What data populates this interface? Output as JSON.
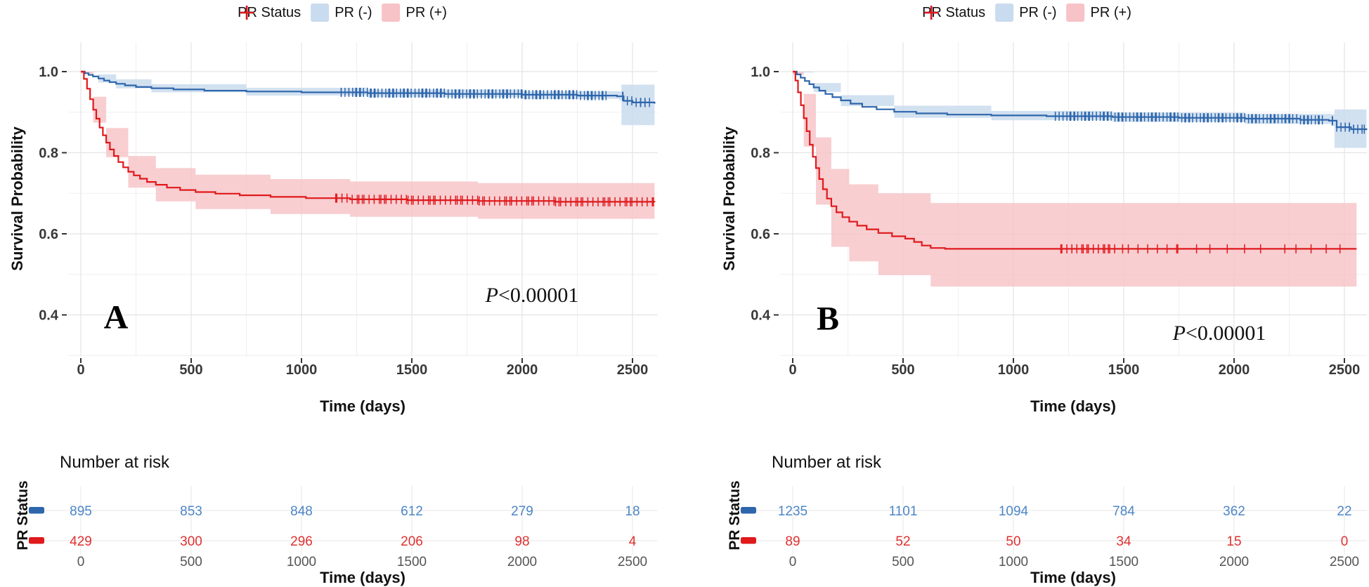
{
  "legend": {
    "title": "PR Status",
    "items": [
      {
        "label": "PR (-)",
        "swatch_fill": "#C9DBEE",
        "plus_color": "#2E66AC"
      },
      {
        "label": "PR (+)",
        "swatch_fill": "#F7C3C6",
        "plus_color": "#E0191C"
      }
    ]
  },
  "colors": {
    "blue_line": "#2E66AC",
    "blue_band": "#C7D9EC",
    "red_line": "#E0191C",
    "red_band": "#F6C2C5",
    "grid_major": "#E4E4E4",
    "grid_minor": "#F1F1F1"
  },
  "chart_data": [
    {
      "type": "line",
      "subtype": "kaplan-meier",
      "panel_label": "A",
      "pvalue_prefix": "P",
      "pvalue_rest": "<0.00001",
      "x_title": "Time (days)",
      "y_title": "Survival Probability",
      "x_ticks": [
        "0",
        "500",
        "1000",
        "1500",
        "2000",
        "2500"
      ],
      "y_ticks": [
        "1.0",
        "0.8",
        "0.6",
        "0.4"
      ],
      "xlim": [
        0,
        2600
      ],
      "ylim": [
        0.3,
        1.05
      ],
      "grid": true,
      "legend_position": "top",
      "risk_title": "Number at risk",
      "risk_axis_title": "PR Status",
      "risk_x_ticks": [
        "0",
        "500",
        "1000",
        "1500",
        "2000",
        "2500"
      ],
      "risk_x_title": "Time (days)",
      "series": [
        {
          "name": "PR (-)",
          "line_color": "#2E66AC",
          "band_color": "#C7D9EC",
          "risk_text_color": "#4C86C6",
          "points": [
            [
              0,
              1.0
            ],
            [
              18,
              0.996
            ],
            [
              35,
              0.992
            ],
            [
              55,
              0.988
            ],
            [
              80,
              0.983
            ],
            [
              105,
              0.978
            ],
            [
              130,
              0.974
            ],
            [
              160,
              0.97
            ],
            [
              200,
              0.966
            ],
            [
              250,
              0.962
            ],
            [
              320,
              0.959
            ],
            [
              420,
              0.956
            ],
            [
              560,
              0.953
            ],
            [
              750,
              0.951
            ],
            [
              1000,
              0.949
            ],
            [
              1300,
              0.947
            ],
            [
              1650,
              0.945
            ],
            [
              2000,
              0.943
            ],
            [
              2250,
              0.941
            ],
            [
              2430,
              0.939
            ],
            [
              2460,
              0.928
            ],
            [
              2500,
              0.924
            ],
            [
              2600,
              0.921
            ]
          ],
          "upper": [
            [
              0,
              1.0
            ],
            [
              80,
              0.993
            ],
            [
              160,
              0.981
            ],
            [
              320,
              0.969
            ],
            [
              750,
              0.96
            ],
            [
              1300,
              0.956
            ],
            [
              2000,
              0.952
            ],
            [
              2440,
              0.951
            ],
            [
              2450,
              0.968
            ],
            [
              2600,
              0.968
            ]
          ],
          "lower": [
            [
              0,
              0.999
            ],
            [
              80,
              0.973
            ],
            [
              160,
              0.959
            ],
            [
              320,
              0.949
            ],
            [
              750,
              0.941
            ],
            [
              1300,
              0.937
            ],
            [
              2000,
              0.933
            ],
            [
              2440,
              0.929
            ],
            [
              2450,
              0.868
            ],
            [
              2600,
              0.868
            ]
          ],
          "censor_ranges": [
            [
              1180,
              2380,
              105
            ],
            [
              2455,
              2580,
              10
            ]
          ],
          "risk_counts": [
            "895",
            "853",
            "848",
            "612",
            "279",
            "18"
          ]
        },
        {
          "name": "PR (+)",
          "line_color": "#E0191C",
          "band_color": "#F6C2C5",
          "risk_text_color": "#E03030",
          "points": [
            [
              0,
              1.0
            ],
            [
              14,
              0.982
            ],
            [
              28,
              0.958
            ],
            [
              42,
              0.932
            ],
            [
              56,
              0.906
            ],
            [
              70,
              0.884
            ],
            [
              85,
              0.862
            ],
            [
              100,
              0.843
            ],
            [
              115,
              0.825
            ],
            [
              132,
              0.808
            ],
            [
              150,
              0.792
            ],
            [
              170,
              0.777
            ],
            [
              192,
              0.764
            ],
            [
              215,
              0.753
            ],
            [
              240,
              0.744
            ],
            [
              268,
              0.736
            ],
            [
              300,
              0.728
            ],
            [
              340,
              0.721
            ],
            [
              390,
              0.714
            ],
            [
              450,
              0.708
            ],
            [
              520,
              0.703
            ],
            [
              610,
              0.699
            ],
            [
              720,
              0.695
            ],
            [
              860,
              0.691
            ],
            [
              1020,
              0.688
            ],
            [
              1220,
              0.685
            ],
            [
              1480,
              0.683
            ],
            [
              1800,
              0.681
            ],
            [
              2150,
              0.679
            ],
            [
              2600,
              0.678
            ]
          ],
          "upper": [
            [
              0,
              1.0
            ],
            [
              56,
              0.938
            ],
            [
              115,
              0.861
            ],
            [
              215,
              0.792
            ],
            [
              340,
              0.762
            ],
            [
              520,
              0.746
            ],
            [
              860,
              0.735
            ],
            [
              1220,
              0.729
            ],
            [
              1800,
              0.725
            ],
            [
              2600,
              0.723
            ]
          ],
          "lower": [
            [
              0,
              0.995
            ],
            [
              56,
              0.874
            ],
            [
              115,
              0.789
            ],
            [
              215,
              0.714
            ],
            [
              340,
              0.68
            ],
            [
              520,
              0.661
            ],
            [
              860,
              0.649
            ],
            [
              1220,
              0.642
            ],
            [
              1800,
              0.637
            ],
            [
              2600,
              0.633
            ]
          ],
          "censor_ranges": [
            [
              1155,
              2595,
              85
            ]
          ],
          "risk_counts": [
            "429",
            "300",
            "296",
            "206",
            "98",
            "4"
          ]
        }
      ]
    },
    {
      "type": "line",
      "subtype": "kaplan-meier",
      "panel_label": "B",
      "pvalue_prefix": "P",
      "pvalue_rest": "<0.00001",
      "x_title": "Time (days)",
      "y_title": "Survival Probability",
      "x_ticks": [
        "0",
        "500",
        "1000",
        "1500",
        "2000",
        "2500"
      ],
      "y_ticks": [
        "1.0",
        "0.8",
        "0.6",
        "0.4"
      ],
      "xlim": [
        0,
        2600
      ],
      "ylim": [
        0.3,
        1.05
      ],
      "grid": true,
      "legend_position": "top",
      "risk_title": "Number at risk",
      "risk_axis_title": "PR Status",
      "risk_x_ticks": [
        "0",
        "500",
        "1000",
        "1500",
        "2000",
        "2500"
      ],
      "risk_x_title": "Time (days)",
      "series": [
        {
          "name": "PR (-)",
          "line_color": "#2E66AC",
          "band_color": "#C7D9EC",
          "risk_text_color": "#4C86C6",
          "points": [
            [
              0,
              1.0
            ],
            [
              18,
              0.993
            ],
            [
              36,
              0.985
            ],
            [
              55,
              0.977
            ],
            [
              75,
              0.969
            ],
            [
              95,
              0.961
            ],
            [
              120,
              0.953
            ],
            [
              148,
              0.945
            ],
            [
              180,
              0.937
            ],
            [
              218,
              0.929
            ],
            [
              262,
              0.921
            ],
            [
              315,
              0.913
            ],
            [
              380,
              0.907
            ],
            [
              460,
              0.901
            ],
            [
              560,
              0.897
            ],
            [
              700,
              0.894
            ],
            [
              900,
              0.892
            ],
            [
              1150,
              0.89
            ],
            [
              1450,
              0.888
            ],
            [
              1750,
              0.886
            ],
            [
              2050,
              0.884
            ],
            [
              2300,
              0.881
            ],
            [
              2430,
              0.879
            ],
            [
              2465,
              0.863
            ],
            [
              2530,
              0.858
            ],
            [
              2600,
              0.856
            ]
          ],
          "upper": [
            [
              0,
              1.0
            ],
            [
              95,
              0.972
            ],
            [
              218,
              0.942
            ],
            [
              460,
              0.916
            ],
            [
              900,
              0.903
            ],
            [
              1450,
              0.899
            ],
            [
              2050,
              0.896
            ],
            [
              2440,
              0.895
            ],
            [
              2455,
              0.907
            ],
            [
              2600,
              0.907
            ]
          ],
          "lower": [
            [
              0,
              0.998
            ],
            [
              95,
              0.95
            ],
            [
              218,
              0.915
            ],
            [
              460,
              0.886
            ],
            [
              900,
              0.88
            ],
            [
              1450,
              0.876
            ],
            [
              2050,
              0.871
            ],
            [
              2440,
              0.866
            ],
            [
              2455,
              0.812
            ],
            [
              2600,
              0.812
            ]
          ],
          "censor_ranges": [
            [
              1190,
              2400,
              105
            ],
            [
              2445,
              2590,
              12
            ]
          ],
          "risk_counts": [
            "1235",
            "1101",
            "1094",
            "784",
            "362",
            "22"
          ]
        },
        {
          "name": "PR (+)",
          "line_color": "#E0191C",
          "band_color": "#F6C2C5",
          "risk_text_color": "#E03030",
          "points": [
            [
              0,
              1.0
            ],
            [
              12,
              0.978
            ],
            [
              24,
              0.949
            ],
            [
              37,
              0.917
            ],
            [
              50,
              0.885
            ],
            [
              63,
              0.853
            ],
            [
              77,
              0.82
            ],
            [
              91,
              0.79
            ],
            [
              105,
              0.762
            ],
            [
              120,
              0.735
            ],
            [
              137,
              0.71
            ],
            [
              155,
              0.687
            ],
            [
              175,
              0.668
            ],
            [
              198,
              0.653
            ],
            [
              225,
              0.641
            ],
            [
              256,
              0.63
            ],
            [
              292,
              0.62
            ],
            [
              335,
              0.611
            ],
            [
              388,
              0.602
            ],
            [
              450,
              0.594
            ],
            [
              510,
              0.588
            ],
            [
              550,
              0.58
            ],
            [
              585,
              0.571
            ],
            [
              625,
              0.565
            ],
            [
              690,
              0.563
            ],
            [
              2555,
              0.563
            ]
          ],
          "upper": [
            [
              0,
              1.0
            ],
            [
              50,
              0.945
            ],
            [
              105,
              0.838
            ],
            [
              175,
              0.76
            ],
            [
              256,
              0.722
            ],
            [
              388,
              0.7
            ],
            [
              625,
              0.676
            ],
            [
              2555,
              0.672
            ]
          ],
          "lower": [
            [
              0,
              0.992
            ],
            [
              50,
              0.815
            ],
            [
              105,
              0.672
            ],
            [
              175,
              0.568
            ],
            [
              256,
              0.532
            ],
            [
              388,
              0.498
            ],
            [
              625,
              0.47
            ],
            [
              2555,
              0.467
            ]
          ],
          "censor_ranges": [
            [
              1215,
              1465,
              16
            ],
            [
              1495,
              1760,
              8
            ],
            [
              1830,
              2120,
              5
            ],
            [
              2230,
              2480,
              5
            ]
          ],
          "risk_counts": [
            "89",
            "52",
            "50",
            "34",
            "15",
            "0"
          ]
        }
      ]
    }
  ]
}
